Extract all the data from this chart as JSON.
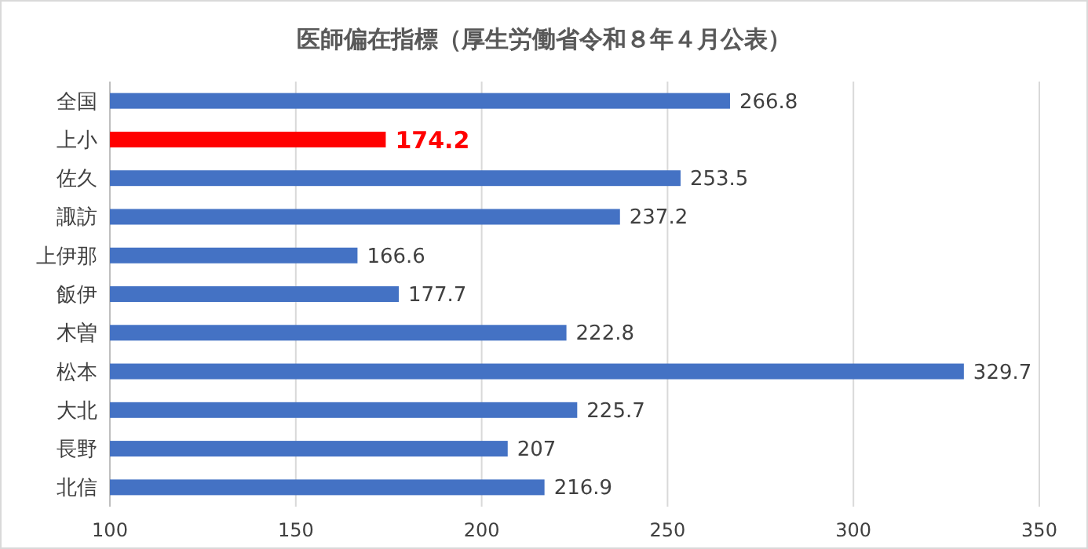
{
  "chart_data": {
    "type": "bar",
    "orientation": "horizontal",
    "title": "医師偏在指標（厚生労働省令和８年４月公表）",
    "categories": [
      "全国",
      "上小",
      "佐久",
      "諏訪",
      "上伊那",
      "飯伊",
      "木曽",
      "松本",
      "大北",
      "長野",
      "北信"
    ],
    "values": [
      266.8,
      174.2,
      253.5,
      237.2,
      166.6,
      177.7,
      222.8,
      329.7,
      225.7,
      207,
      216.9
    ],
    "colors": [
      "#4472c4",
      "#ff0000",
      "#4472c4",
      "#4472c4",
      "#4472c4",
      "#4472c4",
      "#4472c4",
      "#4472c4",
      "#4472c4",
      "#4472c4",
      "#4472c4"
    ],
    "xlim": [
      100,
      350
    ],
    "xticks": [
      100,
      150,
      200,
      250,
      300,
      350
    ],
    "grid": "x",
    "data_labels": true
  }
}
